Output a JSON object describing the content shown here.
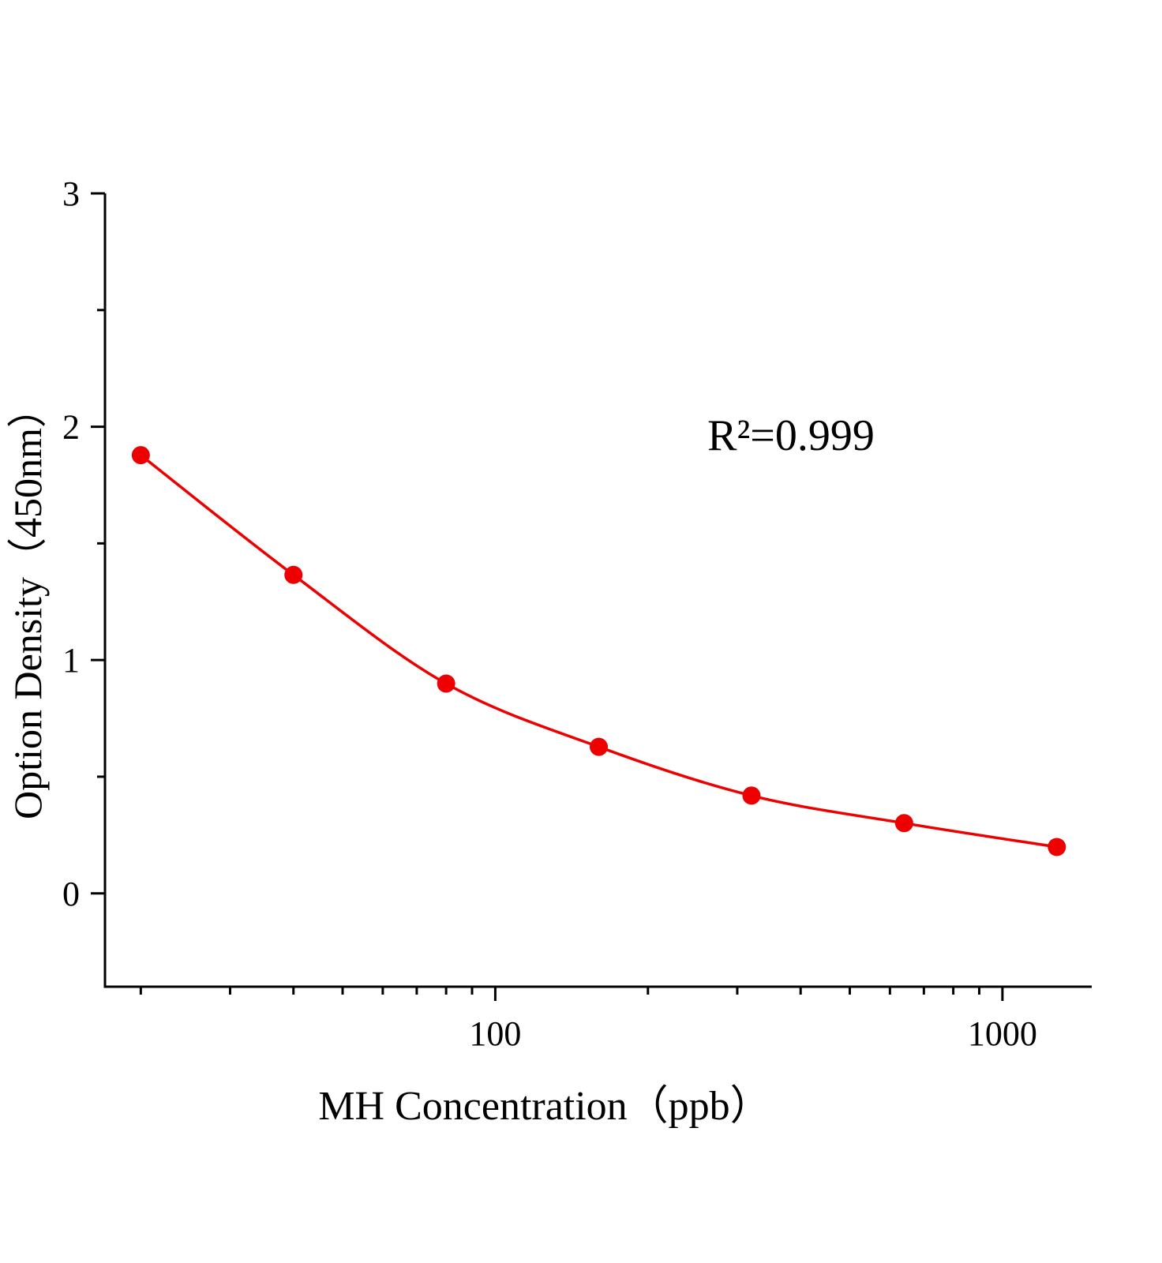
{
  "chart_data": {
    "type": "scatter",
    "x_label": "MH Concentration（ppb）",
    "y_label": "Option Density（450nm）",
    "annotation": "R²=0.999",
    "x": [
      20,
      40,
      80,
      160,
      320,
      640,
      1280
    ],
    "series": [
      {
        "values": [
          1.878,
          1.365,
          0.899,
          0.628,
          0.419,
          0.301,
          0.199
        ],
        "color": "#ee0000",
        "fit_line": true
      }
    ],
    "xlim": [
      17,
      1500
    ],
    "xticks": [
      100,
      1000
    ],
    "xminor_ticks": [
      20,
      30,
      40,
      50,
      60,
      70,
      80,
      90,
      200,
      300,
      400,
      500,
      600,
      700,
      800,
      900
    ],
    "xscale": "log",
    "ylim": [
      -0.4,
      3
    ],
    "yticks": [
      0,
      1,
      2,
      3
    ],
    "yminor_ticks": [
      0.5,
      1.5,
      2.5
    ],
    "grid": false
  }
}
